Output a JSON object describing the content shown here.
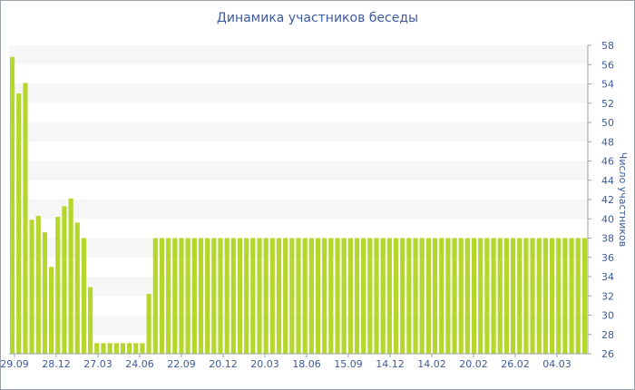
{
  "chart_data": {
    "type": "bar",
    "title": "Динамика участников беседы",
    "xlabel": "",
    "ylabel": "Число участников",
    "ylim": [
      26,
      58
    ],
    "yticks": [
      26,
      28,
      30,
      32,
      34,
      36,
      38,
      40,
      42,
      44,
      46,
      48,
      50,
      52,
      54,
      56,
      58
    ],
    "y_axis_side": "right",
    "grid": "horizontal alternating bands",
    "xtick_labels": [
      "29.09",
      "28.12",
      "27.03",
      "24.06",
      "22.09",
      "20.12",
      "20.03",
      "18.06",
      "15.09",
      "14.12",
      "14.02",
      "20.02",
      "26.02",
      "04.03"
    ],
    "values": [
      56.8,
      53,
      54.1,
      39.9,
      40.3,
      38.6,
      35,
      40.2,
      41.3,
      42.1,
      39.6,
      38,
      32.9,
      27.1,
      27.1,
      27.1,
      27.1,
      27.1,
      27.1,
      27.1,
      27.1,
      32.2,
      38,
      38,
      38,
      38,
      38,
      38,
      38,
      38,
      38,
      38,
      38,
      38,
      38,
      38,
      38,
      38,
      38,
      38,
      38,
      38,
      38,
      38,
      38,
      38,
      38,
      38,
      38,
      38,
      38,
      38,
      38,
      38,
      38,
      38,
      38,
      38,
      38,
      38,
      38,
      38,
      38,
      38,
      38,
      38,
      38,
      38,
      38,
      38,
      38,
      38,
      38,
      38,
      38,
      38,
      38,
      38,
      38,
      38,
      38,
      38,
      38,
      38,
      38,
      38,
      38,
      38,
      38
    ],
    "bar_color": "#b5d62b",
    "band_color": "#f6f6f6",
    "text_color": "#3d5a9e"
  }
}
